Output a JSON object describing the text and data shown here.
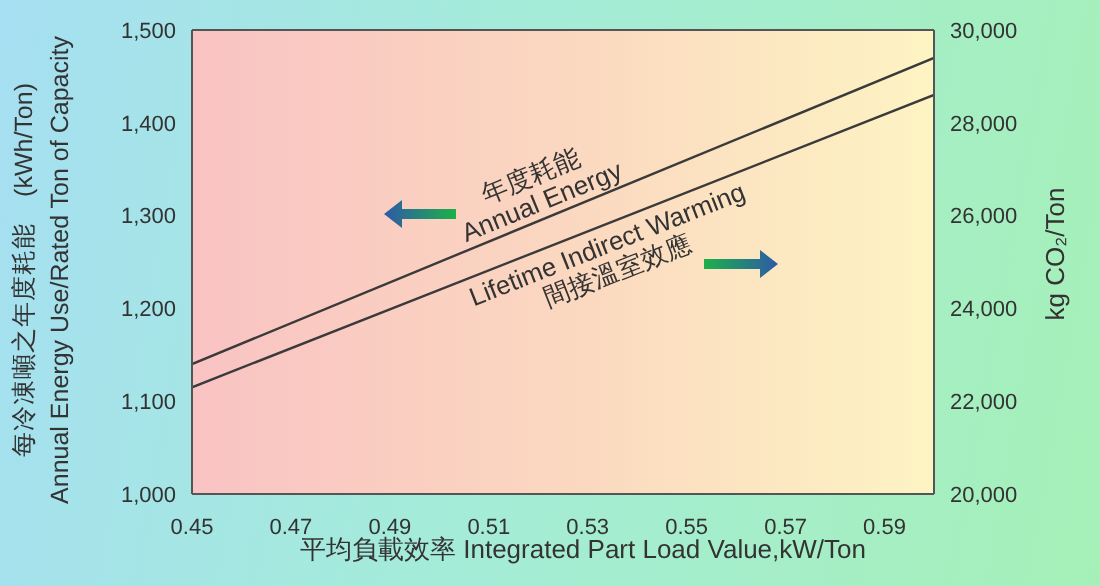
{
  "chart_data": {
    "type": "line",
    "xlabel": "平均負載效率  Integrated Part Load Value,kW/Ton",
    "ylabel": "每冷凍噸之年度耗能　(kWh/Ton)\nAnnual Energy Use/Rated Ton of Capacity",
    "y2label": "kg CO₂/Ton",
    "x": [
      0.45,
      0.6
    ],
    "series": [
      {
        "name": "年度耗能\nAnnual Energy",
        "color": "#3a3a3a",
        "values": [
          1140,
          1470
        ]
      },
      {
        "name": "Lifetime Indirect Warming\n間接溫室效應",
        "color": "#3a3a3a",
        "values": [
          22300,
          28600
        ],
        "axis": "y2"
      }
    ],
    "xlim": [
      0.45,
      0.6
    ],
    "xticks": [
      0.45,
      0.47,
      0.49,
      0.51,
      0.53,
      0.55,
      0.57,
      0.59
    ],
    "ylim": [
      1000,
      1500
    ],
    "yticks": [
      {
        "value": 1000,
        "label": "1,000"
      },
      {
        "value": 1100,
        "label": "1,100"
      },
      {
        "value": 1200,
        "label": "1,200"
      },
      {
        "value": 1300,
        "label": "1,300"
      },
      {
        "value": 1400,
        "label": "1,400"
      },
      {
        "value": 1500,
        "label": "1,500"
      }
    ],
    "y2lim": [
      20000,
      30000
    ],
    "y2ticks": [
      {
        "value": 20000,
        "label": "20,000"
      },
      {
        "value": 22000,
        "label": "22,000"
      },
      {
        "value": 24000,
        "label": "24,000"
      },
      {
        "value": 26000,
        "label": "26,000"
      },
      {
        "value": 28000,
        "label": "28,000"
      },
      {
        "value": 30000,
        "label": "30,000"
      }
    ],
    "grid": false,
    "legend": false,
    "marker": "none",
    "line_style": "solid"
  }
}
